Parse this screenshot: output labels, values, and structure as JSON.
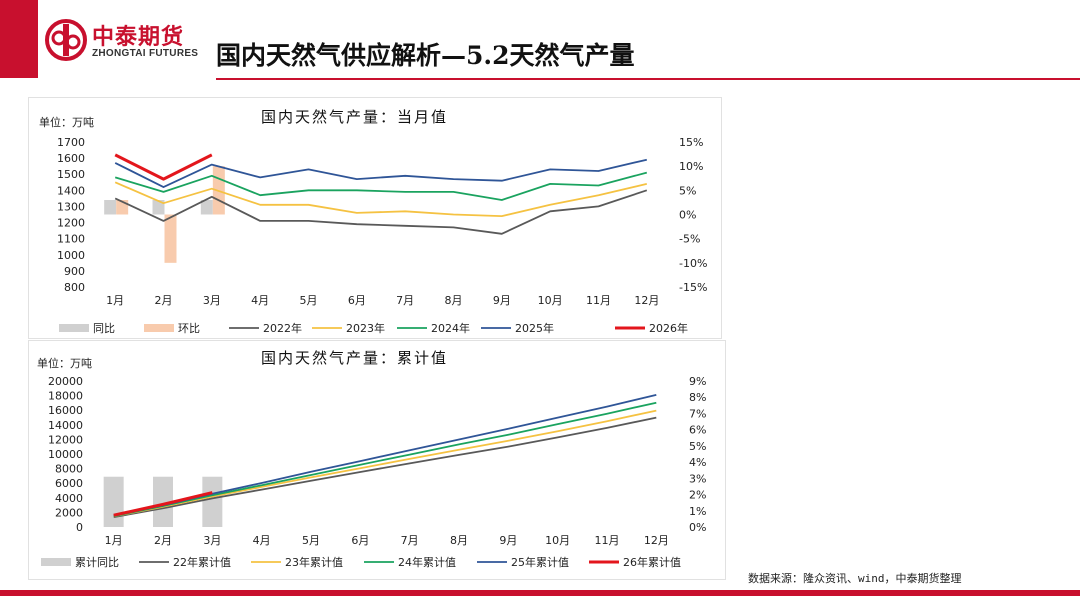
{
  "header": {
    "logo_cn": "中泰期货",
    "logo_en": "ZHONGTAI FUTURES",
    "title": "国内天然气供应解析—5.2天然气产量"
  },
  "footer": {
    "source": "数据来源：隆众资讯、wind，中泰期货整理"
  },
  "colors": {
    "brand": "#c8102e",
    "s2022": "#595959",
    "s2023": "#f5c242",
    "s2024": "#1aa35f",
    "s2025": "#2f5597",
    "s2026": "#e3161c",
    "yoy": "#d0d0d0",
    "mom": "#f8cbad"
  },
  "chart_data": [
    {
      "type": "line",
      "title": "国内天然气产量：当月值",
      "unit": "单位：万吨",
      "categories": [
        "1月",
        "2月",
        "3月",
        "4月",
        "5月",
        "6月",
        "7月",
        "8月",
        "9月",
        "10月",
        "11月",
        "12月"
      ],
      "ylim": [
        800,
        1700
      ],
      "yticks": [
        "1700",
        "1600",
        "1500",
        "1400",
        "1300",
        "1200",
        "1100",
        "1000",
        "900",
        "800"
      ],
      "y2lim": [
        -15,
        15
      ],
      "y2ticks": [
        "15%",
        "10%",
        "5%",
        "0%",
        "-5%",
        "-10%",
        "-15%"
      ],
      "series": [
        {
          "name": "2022年",
          "color_key": "s2022",
          "values": [
            1350,
            1210,
            1360,
            1210,
            1210,
            1190,
            1180,
            1170,
            1130,
            1270,
            1300,
            1400
          ]
        },
        {
          "name": "2023年",
          "color_key": "s2023",
          "values": [
            1450,
            1320,
            1410,
            1310,
            1310,
            1260,
            1270,
            1250,
            1240,
            1310,
            1370,
            1440
          ]
        },
        {
          "name": "2024年",
          "color_key": "s2024",
          "values": [
            1480,
            1390,
            1490,
            1370,
            1400,
            1400,
            1390,
            1390,
            1340,
            1440,
            1430,
            1510
          ]
        },
        {
          "name": "2025年",
          "color_key": "s2025",
          "values": [
            1570,
            1420,
            1560,
            1480,
            1530,
            1470,
            1490,
            1470,
            1460,
            1530,
            1520,
            1590
          ]
        },
        {
          "name": "2026年",
          "color_key": "s2026",
          "values": [
            1620,
            1470,
            1620,
            null,
            null,
            null,
            null,
            null,
            null,
            null,
            null,
            null
          ]
        }
      ],
      "bars": [
        {
          "name": "同比",
          "color_key": "yoy",
          "values": [
            3.0,
            3.0,
            3.0,
            null,
            null,
            null,
            null,
            null,
            null,
            null,
            null,
            null
          ]
        },
        {
          "name": "环比",
          "color_key": "mom",
          "values": [
            3.0,
            -10.0,
            10.0,
            null,
            null,
            null,
            null,
            null,
            null,
            null,
            null,
            null
          ]
        }
      ],
      "legend": [
        "同比",
        "环比",
        "2022年",
        "2023年",
        "2024年",
        "2025年",
        "2026年"
      ]
    },
    {
      "type": "line",
      "title": "国内天然气产量：累计值",
      "unit": "单位：万吨",
      "categories": [
        "1月",
        "2月",
        "3月",
        "4月",
        "5月",
        "6月",
        "7月",
        "8月",
        "9月",
        "10月",
        "11月",
        "12月"
      ],
      "ylim": [
        0,
        20000
      ],
      "yticks": [
        "20000",
        "18000",
        "16000",
        "14000",
        "12000",
        "10000",
        "8000",
        "6000",
        "4000",
        "2000",
        "0"
      ],
      "y2lim": [
        0,
        9
      ],
      "y2ticks": [
        "9%",
        "8%",
        "7%",
        "6%",
        "5%",
        "4%",
        "3%",
        "2%",
        "1%",
        "0%"
      ],
      "series": [
        {
          "name": "22年累计值",
          "color_key": "s2022",
          "values": [
            1350,
            2560,
            3920,
            5130,
            6340,
            7530,
            8710,
            9880,
            11010,
            12280,
            13580,
            14980
          ]
        },
        {
          "name": "23年累计值",
          "color_key": "s2023",
          "values": [
            1450,
            2770,
            4180,
            5490,
            6800,
            8060,
            9330,
            10580,
            11820,
            13130,
            14500,
            15940
          ]
        },
        {
          "name": "24年累计值",
          "color_key": "s2024",
          "values": [
            1480,
            2870,
            4360,
            5730,
            7130,
            8530,
            9920,
            11310,
            12650,
            14090,
            15520,
            17030
          ]
        },
        {
          "name": "25年累计值",
          "color_key": "s2025",
          "values": [
            1570,
            2990,
            4550,
            6030,
            7560,
            9030,
            10520,
            11990,
            13450,
            14980,
            16500,
            18090
          ]
        },
        {
          "name": "26年累计值",
          "color_key": "s2026",
          "values": [
            1620,
            3090,
            4710,
            null,
            null,
            null,
            null,
            null,
            null,
            null,
            null,
            null
          ]
        }
      ],
      "bars": [
        {
          "name": "累计同比",
          "color_key": "yoy",
          "values": [
            3.1,
            3.1,
            3.1,
            null,
            null,
            null,
            null,
            null,
            null,
            null,
            null,
            null
          ]
        }
      ],
      "legend": [
        "累计同比",
        "22年累计值",
        "23年累计值",
        "24年累计值",
        "25年累计值",
        "26年累计值"
      ]
    }
  ]
}
